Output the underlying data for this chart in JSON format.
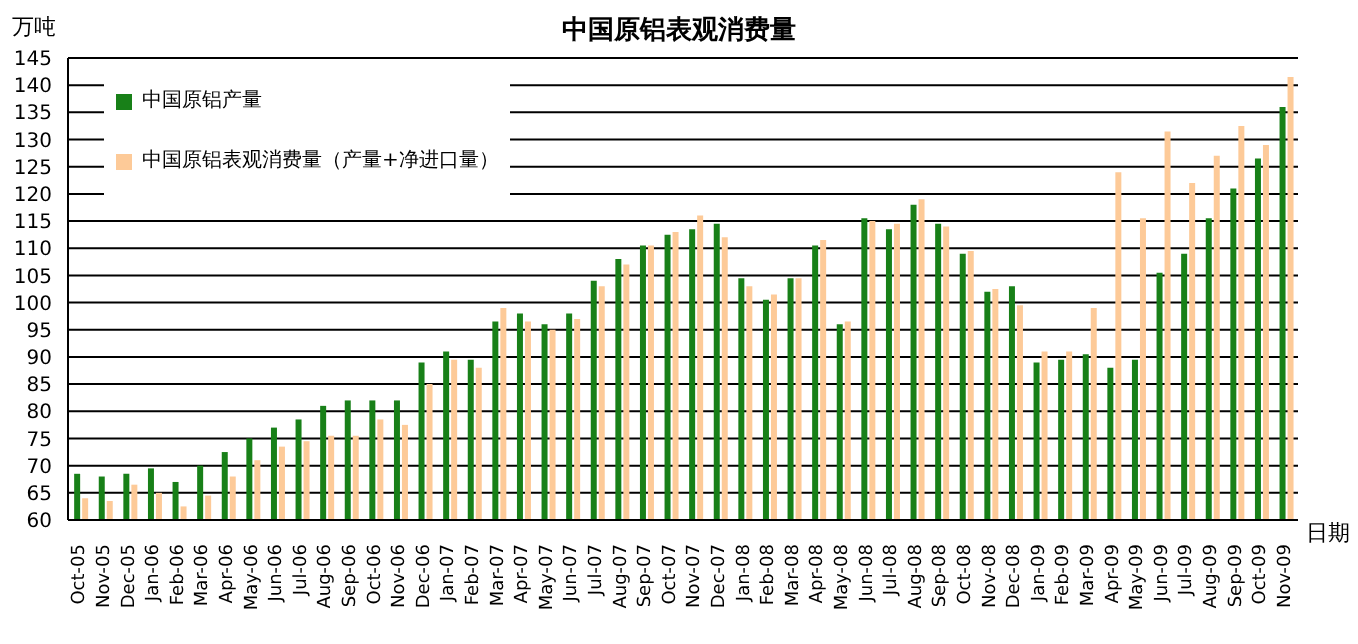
{
  "chart_data": {
    "type": "bar",
    "title": "中国原铝表观消费量",
    "xlabel": "日期",
    "ylabel": "万吨",
    "categories": [
      "Oct-05",
      "Nov-05",
      "Dec-05",
      "Jan-06",
      "Feb-06",
      "Mar-06",
      "Apr-06",
      "May-06",
      "Jun-06",
      "Jul-06",
      "Aug-06",
      "Sep-06",
      "Oct-06",
      "Nov-06",
      "Dec-06",
      "Jan-07",
      "Feb-07",
      "Mar-07",
      "Apr-07",
      "May-07",
      "Jun-07",
      "Jul-07",
      "Aug-07",
      "Sep-07",
      "Oct-07",
      "Nov-07",
      "Dec-07",
      "Jan-08",
      "Feb-08",
      "Mar-08",
      "Apr-08",
      "May-08",
      "Jun-08",
      "Jul-08",
      "Aug-08",
      "Sep-08",
      "Oct-08",
      "Nov-08",
      "Dec-08",
      "Jan-09",
      "Feb-09",
      "Mar-09",
      "Apr-09",
      "May-09",
      "Jun-09",
      "Jul-09",
      "Aug-09",
      "Sep-09",
      "Oct-09",
      "Nov-09"
    ],
    "series": [
      {
        "name": "中国原铝产量",
        "color": "#188018",
        "values": [
          68.5,
          68,
          68.5,
          69.5,
          67,
          70,
          72.5,
          75,
          77,
          78.5,
          81,
          82,
          82,
          82,
          89,
          91,
          89.5,
          96.5,
          98,
          96,
          98,
          104,
          108,
          110.5,
          112.5,
          113.5,
          114.5,
          104.5,
          100.5,
          104.5,
          110.5,
          96,
          115.5,
          113.5,
          118,
          114.5,
          109,
          102,
          103,
          89,
          89.5,
          90.5,
          88,
          89.5,
          105.5,
          109,
          115.5,
          121,
          126.5,
          136
        ]
      },
      {
        "name": "中国原铝表观消费量（产量+净进口量）",
        "color": "#fdca98",
        "values": [
          64,
          63.5,
          66.5,
          65,
          62.5,
          64.5,
          68,
          71,
          73.5,
          74.5,
          75.5,
          75.5,
          78.5,
          77.5,
          85,
          89.5,
          88,
          99,
          96.5,
          95,
          97,
          103,
          107,
          110.5,
          113,
          116,
          112,
          103,
          101.5,
          104.5,
          111.5,
          96.5,
          115,
          114.5,
          119,
          114,
          109.5,
          102.5,
          99.5,
          91,
          91,
          99,
          124,
          115.5,
          131.5,
          122,
          127,
          132.5,
          129,
          141.5
        ]
      }
    ],
    "ylim": [
      60,
      145
    ],
    "yticks": [
      60,
      65,
      70,
      75,
      80,
      85,
      90,
      95,
      100,
      105,
      110,
      115,
      120,
      125,
      130,
      135,
      140,
      145
    ],
    "grid": "y",
    "legend": "top left"
  }
}
